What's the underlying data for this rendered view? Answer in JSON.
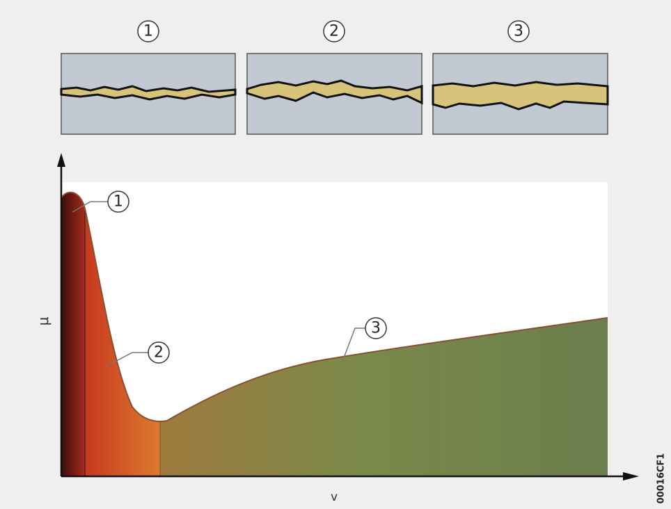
{
  "panels": [
    {
      "label": "1"
    },
    {
      "label": "2"
    },
    {
      "label": "3"
    }
  ],
  "curve_labels": [
    "1",
    "2",
    "3"
  ],
  "axes": {
    "y_label": "μ",
    "x_label": "v"
  },
  "image_id": "00016CF1"
}
